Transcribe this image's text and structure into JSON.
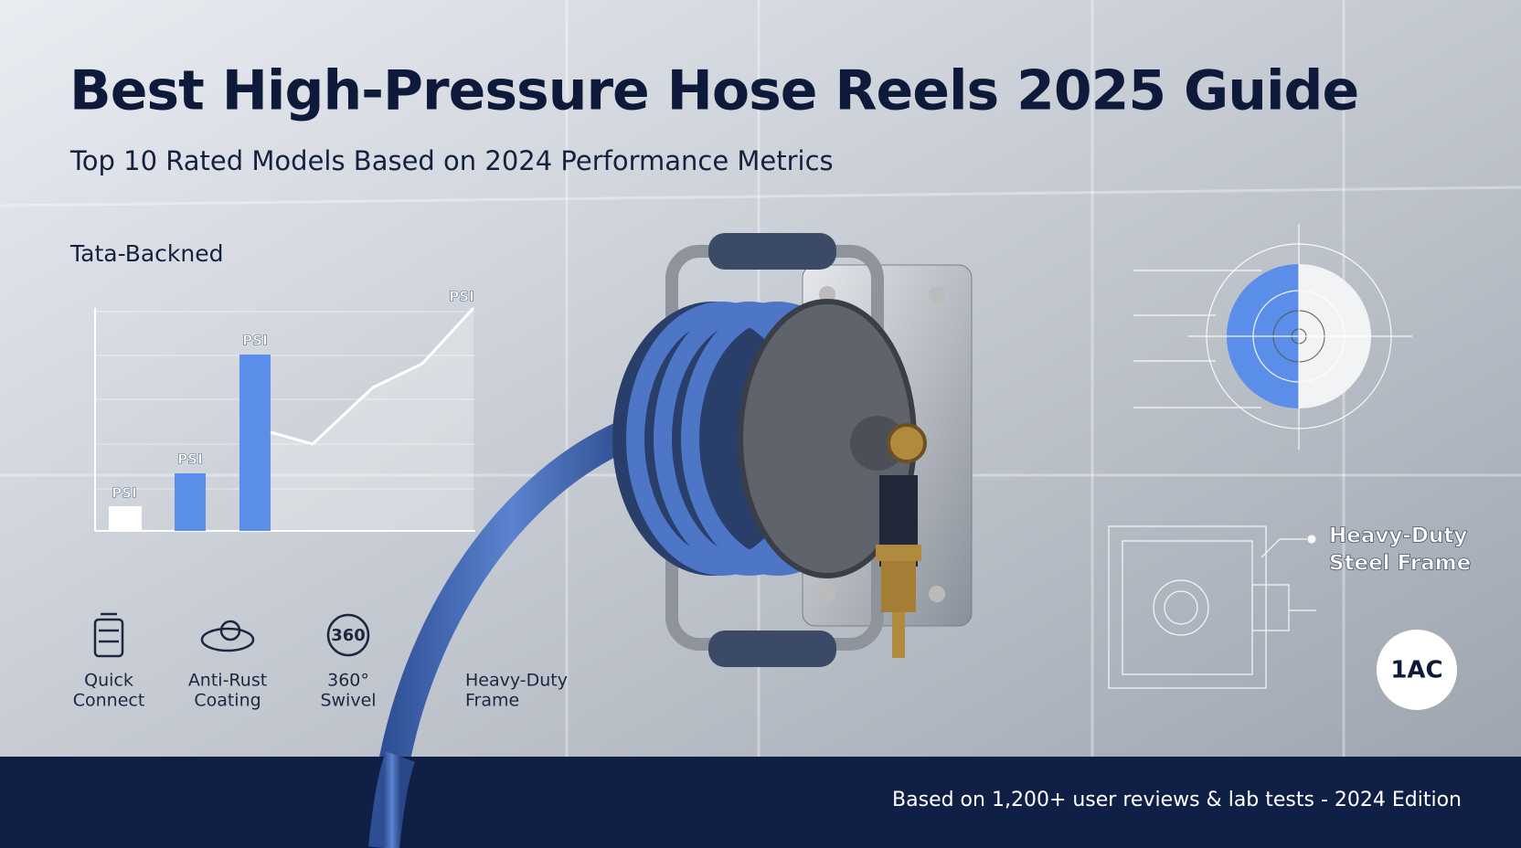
{
  "header": {
    "title": "Best High-Pressure Hose Reels 2025 Guide",
    "subtitle": "Top 10 Rated Models Based on 2024 Performance Metrics"
  },
  "chart_panel": {
    "label": "Tata-Backned",
    "bar_labels": [
      "PSI",
      "PSI",
      "PSI"
    ],
    "line_label": "PSI"
  },
  "features": [
    {
      "icon_text": null,
      "label": [
        "Quick",
        "Connect"
      ]
    },
    {
      "icon_text": null,
      "label": [
        "Anti-Rust",
        "Coating"
      ]
    },
    {
      "icon_text": "360",
      "label": [
        "360°",
        "Swivel"
      ]
    },
    {
      "icon_text": null,
      "label": [
        "Heavy-Duty",
        "Frame"
      ]
    }
  ],
  "diagram": {
    "callout": [
      "Heavy-Duty",
      "Steel Frame"
    ],
    "badge": "1AC"
  },
  "footer": {
    "text": "Based on 1,200+ user reviews & lab tests - 2024 Edition"
  }
}
